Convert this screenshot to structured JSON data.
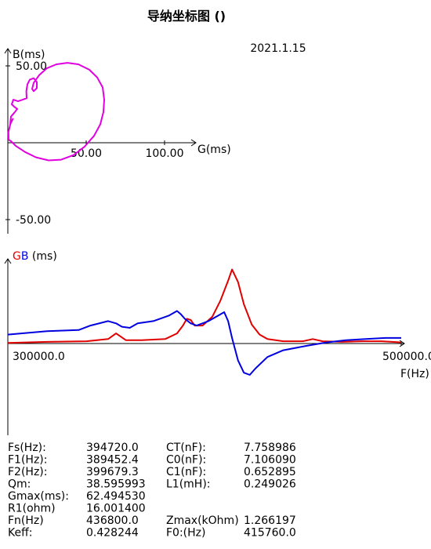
{
  "header": {
    "title": "导纳坐标图 ()",
    "date": "2021.1.15"
  },
  "chart_data": [
    {
      "type": "line",
      "name": "admittance-circle",
      "xlabel": "G(ms)",
      "ylabel": "B(ms)",
      "xlim": [
        0,
        100
      ],
      "ylim": [
        -50,
        50
      ],
      "x_ticks": [
        {
          "v": 50,
          "label": "50.00"
        },
        {
          "v": 100,
          "label": "100.00"
        }
      ],
      "y_ticks": [
        {
          "v": 50,
          "label": "50.00"
        },
        {
          "v": -50,
          "label": "-50.00"
        }
      ],
      "color": "#e000e0",
      "points": [
        [
          0.5,
          2
        ],
        [
          0.4,
          7
        ],
        [
          1.8,
          13
        ],
        [
          3.2,
          15.5
        ],
        [
          1.5,
          12
        ],
        [
          2.0,
          17
        ],
        [
          4.5,
          20
        ],
        [
          6,
          22
        ],
        [
          4,
          23.5
        ],
        [
          2.5,
          25
        ],
        [
          3.5,
          28
        ],
        [
          6.5,
          27
        ],
        [
          9.5,
          28
        ],
        [
          12,
          29
        ],
        [
          11.8,
          33.5
        ],
        [
          12.5,
          38
        ],
        [
          14,
          41
        ],
        [
          16.5,
          42
        ],
        [
          18.5,
          39.5
        ],
        [
          18.5,
          35.5
        ],
        [
          16.5,
          33.5
        ],
        [
          15.5,
          35
        ],
        [
          16.5,
          39
        ],
        [
          20,
          44
        ],
        [
          25,
          48.5
        ],
        [
          31,
          51
        ],
        [
          38,
          52
        ],
        [
          45,
          51
        ],
        [
          52,
          47.5
        ],
        [
          57,
          42.5
        ],
        [
          60.5,
          36
        ],
        [
          61.5,
          28
        ],
        [
          61,
          20
        ],
        [
          59,
          12
        ],
        [
          55,
          4.5
        ],
        [
          49,
          -2.5
        ],
        [
          42,
          -8
        ],
        [
          34,
          -11
        ],
        [
          26,
          -11.5
        ],
        [
          18,
          -9.5
        ],
        [
          11,
          -6
        ],
        [
          5,
          -2
        ],
        [
          2,
          1
        ],
        [
          0.5,
          2
        ]
      ]
    },
    {
      "type": "line",
      "name": "conductance-susceptance-spectrum",
      "ylabel_parts": [
        {
          "text": "G",
          "color": "#e00000"
        },
        {
          "text": "B",
          "color": "#0000e0"
        },
        {
          "text": " (ms)",
          "color": "#000000"
        }
      ],
      "xlabel": "F(Hz)",
      "xlim": [
        300000,
        500000
      ],
      "x_ticks": [
        {
          "v": 300000,
          "label": "300000.0"
        },
        {
          "v": 500000,
          "label": "500000.0"
        }
      ],
      "ylim": [
        -30,
        68
      ],
      "series": [
        {
          "name": "G",
          "color": "#e00000",
          "values": [
            [
              300000,
              0.5
            ],
            [
              320000,
              1.5
            ],
            [
              340000,
              2
            ],
            [
              351000,
              4
            ],
            [
              355000,
              9
            ],
            [
              360000,
              3
            ],
            [
              368000,
              3
            ],
            [
              380000,
              4
            ],
            [
              386000,
              9
            ],
            [
              389000,
              16
            ],
            [
              391000,
              22
            ],
            [
              393000,
              21
            ],
            [
              395000,
              16
            ],
            [
              399000,
              16
            ],
            [
              404000,
              24
            ],
            [
              408000,
              38
            ],
            [
              412000,
              56
            ],
            [
              414000,
              66
            ],
            [
              417000,
              55
            ],
            [
              420000,
              35
            ],
            [
              424000,
              17
            ],
            [
              428000,
              8
            ],
            [
              432000,
              4
            ],
            [
              440000,
              2
            ],
            [
              450000,
              2
            ],
            [
              455000,
              4
            ],
            [
              460000,
              2
            ],
            [
              470000,
              1.5
            ],
            [
              480000,
              2
            ],
            [
              490000,
              2
            ],
            [
              500000,
              1
            ]
          ]
        },
        {
          "name": "B",
          "color": "#0000e0",
          "values": [
            [
              300000,
              8
            ],
            [
              320000,
              11
            ],
            [
              336000,
              12
            ],
            [
              342000,
              16
            ],
            [
              351000,
              20
            ],
            [
              355000,
              18
            ],
            [
              358000,
              15
            ],
            [
              362000,
              14
            ],
            [
              366000,
              18
            ],
            [
              374000,
              20
            ],
            [
              382000,
              25
            ],
            [
              386000,
              29
            ],
            [
              388000,
              26
            ],
            [
              390000,
              22
            ],
            [
              393000,
              18
            ],
            [
              396000,
              16
            ],
            [
              402000,
              20
            ],
            [
              406000,
              24
            ],
            [
              410000,
              28
            ],
            [
              412000,
              20
            ],
            [
              414000,
              5
            ],
            [
              417000,
              -15
            ],
            [
              420000,
              -26
            ],
            [
              423000,
              -28
            ],
            [
              426000,
              -22
            ],
            [
              432000,
              -12
            ],
            [
              440000,
              -6
            ],
            [
              452000,
              -2
            ],
            [
              462000,
              1
            ],
            [
              472000,
              3
            ],
            [
              482000,
              4
            ],
            [
              492000,
              5
            ],
            [
              500000,
              5
            ]
          ]
        }
      ]
    }
  ],
  "params": {
    "left": [
      {
        "label": "Fs(Hz):",
        "value": "394720.0"
      },
      {
        "label": "F1(Hz):",
        "value": "389452.4"
      },
      {
        "label": "F2(Hz):",
        "value": "399679.3"
      },
      {
        "label": "Qm:",
        "value": "38.595993"
      },
      {
        "label": "Gmax(ms):",
        "value": "62.494530"
      },
      {
        "label": "R1(ohm)",
        "value": "16.001400"
      },
      {
        "label": "Fn(Hz)",
        "value": "436800.0"
      },
      {
        "label": "Keff:",
        "value": "0.428244"
      }
    ],
    "right": [
      {
        "label": "CT(nF):",
        "value": "7.758986"
      },
      {
        "label": "C0(nF):",
        "value": "7.106090"
      },
      {
        "label": "C1(nF):",
        "value": "0.652895"
      },
      {
        "label": "L1(mH):",
        "value": "0.249026"
      },
      {
        "label": "",
        "value": ""
      },
      {
        "label": "",
        "value": ""
      },
      {
        "label": "Zmax(kOhm)",
        "value": "1.266197"
      },
      {
        "label": "F0:(Hz)",
        "value": "415760.0"
      }
    ]
  }
}
